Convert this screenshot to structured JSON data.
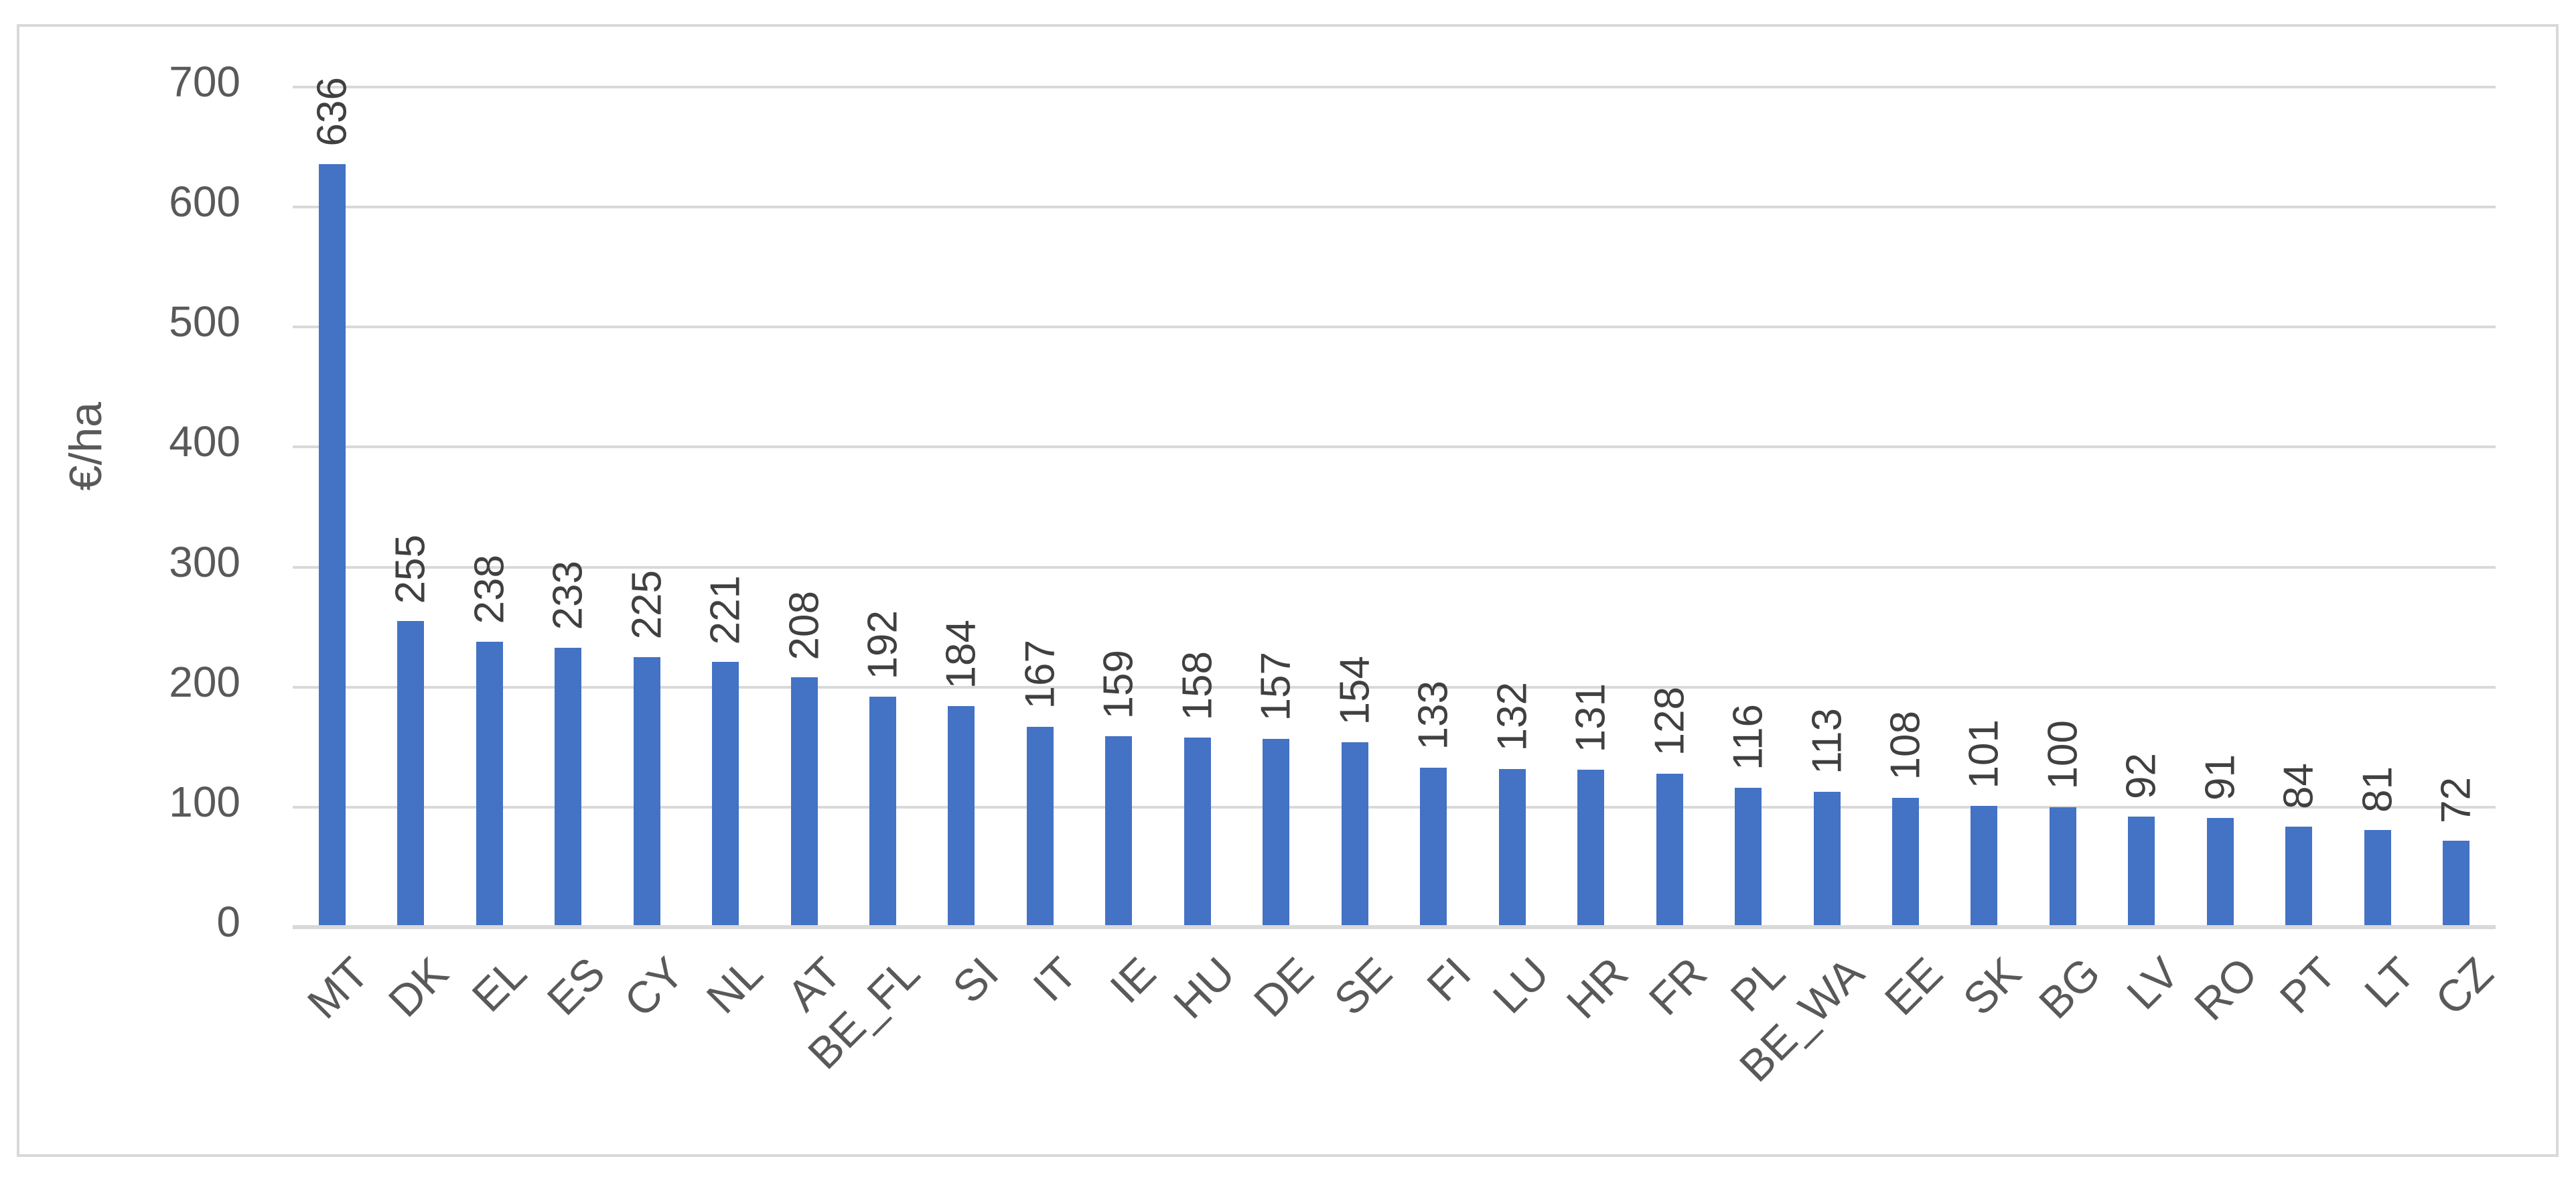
{
  "chart_data": {
    "type": "bar",
    "title": "",
    "ylabel": "€/ha",
    "xlabel": "",
    "categories": [
      "MT",
      "DK",
      "EL",
      "ES",
      "CY",
      "NL",
      "AT",
      "BE_FL",
      "SI",
      "IT",
      "IE",
      "HU",
      "DE",
      "SE",
      "FI",
      "LU",
      "HR",
      "FR",
      "PL",
      "BE_WA",
      "EE",
      "SK",
      "BG",
      "LV",
      "RO",
      "PT",
      "LT",
      "CZ"
    ],
    "values": [
      636,
      255,
      238,
      233,
      225,
      221,
      208,
      192,
      184,
      167,
      159,
      158,
      157,
      154,
      133,
      132,
      131,
      128,
      116,
      113,
      108,
      101,
      100,
      92,
      91,
      84,
      81,
      72
    ],
    "ylim": [
      0,
      700
    ],
    "yticks": [
      0,
      100,
      200,
      300,
      400,
      500,
      600,
      700
    ],
    "grid": true,
    "legend": "none",
    "value_labels": "outside-end, rotated 90 (reading bottom to top)",
    "x_label_rotation_deg": -45,
    "colors": {
      "bar": "#4472C4",
      "gridline": "#D9D9D9",
      "frame_border": "#D9D9D9",
      "axis_text": "#595959",
      "value_label_text": "#404040",
      "background": "#FFFFFF"
    }
  }
}
